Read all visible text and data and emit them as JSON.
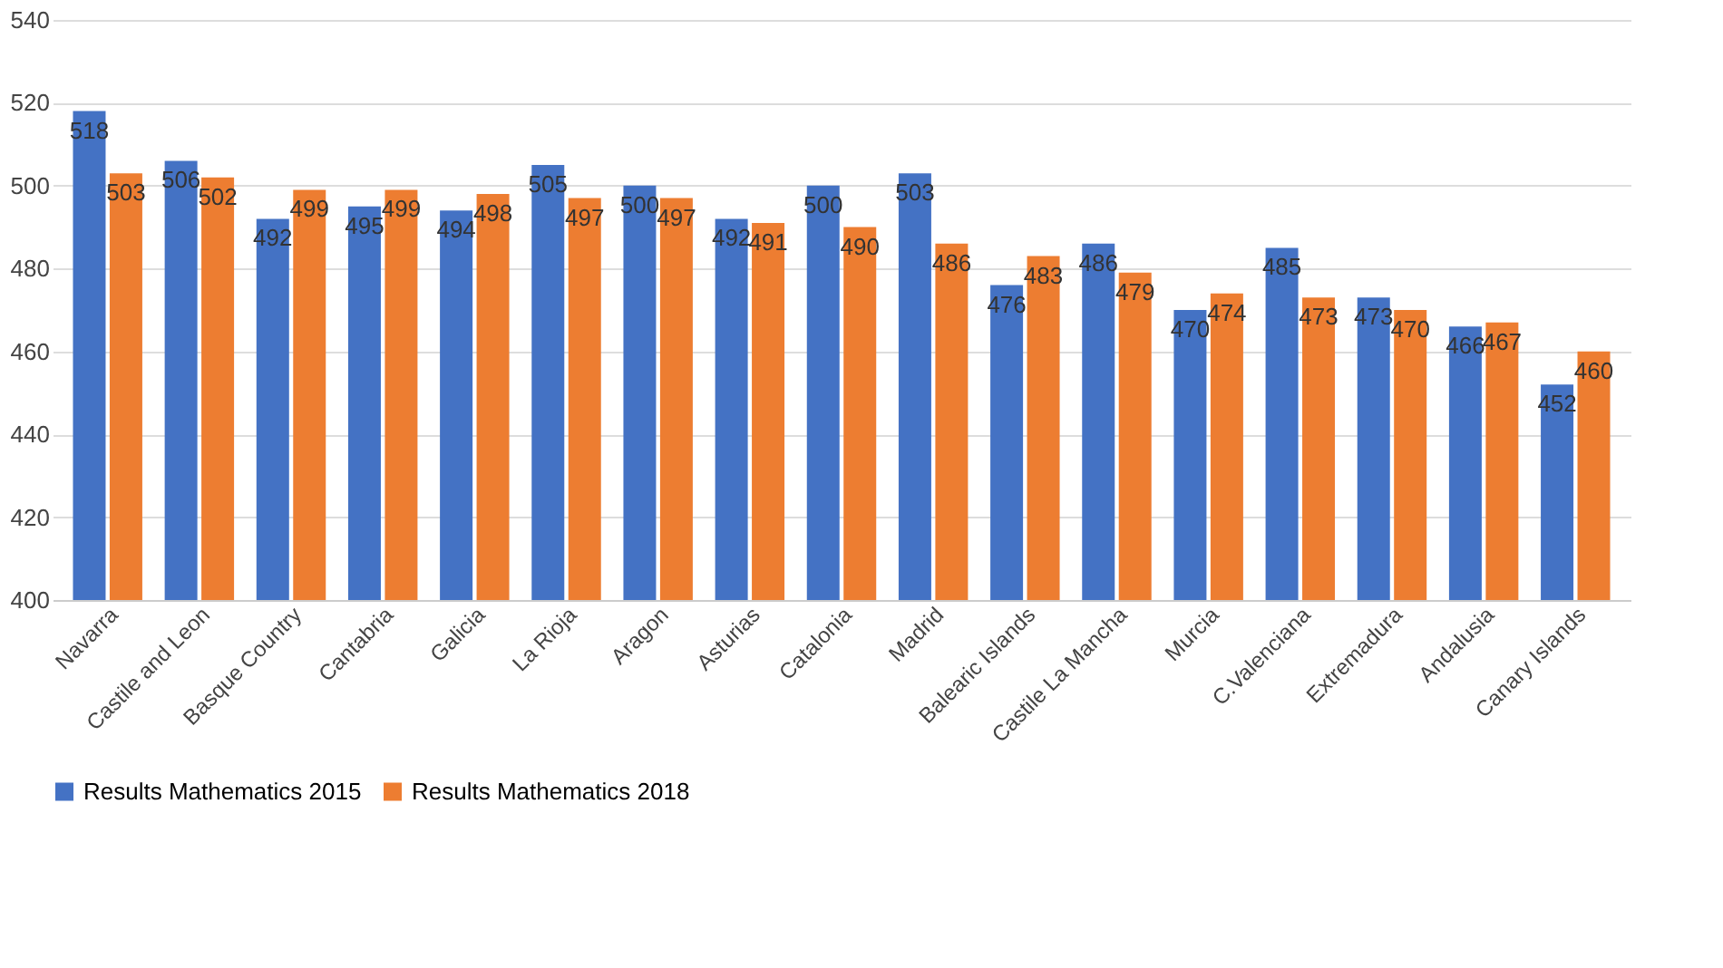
{
  "chart_data": {
    "type": "bar",
    "categories": [
      "Navarra",
      "Castile and Leon",
      "Basque Country",
      "Cantabria",
      "Galicia",
      "La Rioja",
      "Aragon",
      "Asturias",
      "Catalonia",
      "Madrid",
      "Balearic Islands",
      "Castile La Mancha",
      "Murcia",
      "C.Valenciana",
      "Extremadura",
      "Andalusia",
      "Canary Islands"
    ],
    "series": [
      {
        "name": "Results Mathematics 2015",
        "color": "#4472c4",
        "values": [
          518,
          506,
          492,
          495,
          494,
          505,
          500,
          492,
          500,
          503,
          476,
          486,
          470,
          485,
          473,
          466,
          452
        ]
      },
      {
        "name": "Results Mathematics 2018",
        "color": "#ed7d31",
        "values": [
          503,
          502,
          499,
          499,
          498,
          497,
          497,
          491,
          490,
          486,
          483,
          479,
          474,
          473,
          470,
          467,
          460
        ]
      }
    ],
    "ylim": [
      400,
      540
    ],
    "yticks": [
      400,
      420,
      440,
      460,
      480,
      500,
      520,
      540
    ],
    "grid": "y",
    "legend": "bottom",
    "data_labels": true
  }
}
